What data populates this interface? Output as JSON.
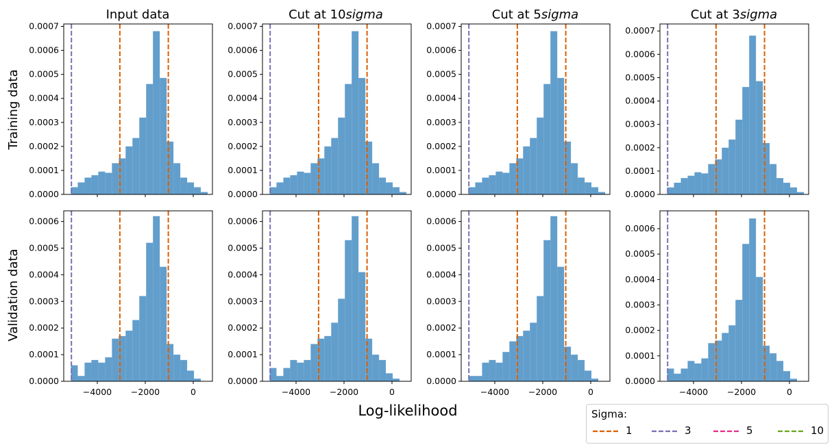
{
  "figure": {
    "xlabel": "Log-likelihood",
    "column_titles": [
      "Input data",
      "Cut at 10",
      "Cut at 5",
      "Cut at 3"
    ],
    "column_title_suffix": "sigma",
    "row_labels": [
      "Training data",
      "Validation data"
    ]
  },
  "legend": {
    "title": "Sigma:",
    "entries": [
      {
        "label": "1",
        "color": "#d95f02"
      },
      {
        "label": "3",
        "color": "#7570b3"
      },
      {
        "label": "5",
        "color": "#e7298a"
      },
      {
        "label": "10",
        "color": "#66a61e"
      }
    ]
  },
  "colors": {
    "bars": "#4c91c5",
    "sigma1": "#d95f02",
    "sigma3": "#7570b3"
  },
  "chart_data": [
    {
      "type": "bar",
      "row": "Training data",
      "column": "Input data",
      "xlim": [
        -5400,
        800
      ],
      "ylim": [
        0,
        0.00071
      ],
      "xticks": [
        -4000,
        -2000,
        0
      ],
      "yticks": [
        0,
        0.0001,
        0.0002,
        0.0003,
        0.0004,
        0.0005,
        0.0006,
        0.0007
      ],
      "bins": {
        "start": -5100,
        "width": 285,
        "heights": [
          3e-05,
          5e-05,
          7e-05,
          8e-05,
          9.5e-05,
          9e-05,
          0.00013,
          0.00015,
          0.0002,
          0.000235,
          0.00032,
          0.00046,
          0.00068,
          0.000485,
          0.00022,
          0.00013,
          7e-05,
          5e-05,
          3e-05,
          1e-05
        ]
      },
      "vlines": [
        {
          "x": -3060,
          "sigma": "1"
        },
        {
          "x": -1040,
          "sigma": "1"
        },
        {
          "x": -5080,
          "sigma": "3"
        }
      ]
    },
    {
      "type": "bar",
      "row": "Training data",
      "column": "Cut at 10sigma",
      "xlim": [
        -5400,
        800
      ],
      "ylim": [
        0,
        0.00071
      ],
      "xticks": [
        -4000,
        -2000,
        0
      ],
      "yticks": [
        0,
        0.0001,
        0.0002,
        0.0003,
        0.0004,
        0.0005,
        0.0006,
        0.0007
      ],
      "bins": {
        "start": -5100,
        "width": 285,
        "heights": [
          3e-05,
          5e-05,
          7e-05,
          8e-05,
          9.5e-05,
          9e-05,
          0.00013,
          0.00015,
          0.0002,
          0.000235,
          0.00032,
          0.00046,
          0.00068,
          0.000485,
          0.00022,
          0.00013,
          7e-05,
          5e-05,
          3e-05,
          1e-05
        ]
      },
      "vlines": [
        {
          "x": -3060,
          "sigma": "1"
        },
        {
          "x": -1040,
          "sigma": "1"
        },
        {
          "x": -5080,
          "sigma": "3"
        }
      ]
    },
    {
      "type": "bar",
      "row": "Training data",
      "column": "Cut at 5sigma",
      "xlim": [
        -5400,
        800
      ],
      "ylim": [
        0,
        0.00071
      ],
      "xticks": [
        -4000,
        -2000,
        0
      ],
      "yticks": [
        0,
        0.0001,
        0.0002,
        0.0003,
        0.0004,
        0.0005,
        0.0006,
        0.0007
      ],
      "bins": {
        "start": -5100,
        "width": 285,
        "heights": [
          3e-05,
          5e-05,
          7e-05,
          8e-05,
          9.5e-05,
          9e-05,
          0.00013,
          0.00015,
          0.0002,
          0.000235,
          0.00032,
          0.00046,
          0.00068,
          0.000485,
          0.00022,
          0.00013,
          7e-05,
          5e-05,
          3e-05,
          1e-05
        ]
      },
      "vlines": [
        {
          "x": -3060,
          "sigma": "1"
        },
        {
          "x": -1040,
          "sigma": "1"
        },
        {
          "x": -5080,
          "sigma": "3"
        }
      ]
    },
    {
      "type": "bar",
      "row": "Training data",
      "column": "Cut at 3sigma",
      "xlim": [
        -5400,
        800
      ],
      "ylim": [
        0,
        0.00073
      ],
      "xticks": [
        -4000,
        -2000,
        0
      ],
      "yticks": [
        0,
        0.0001,
        0.0002,
        0.0003,
        0.0004,
        0.0005,
        0.0006,
        0.0007
      ],
      "bins": {
        "start": -5100,
        "width": 285,
        "heights": [
          3e-05,
          5e-05,
          7e-05,
          8e-05,
          9.5e-05,
          9e-05,
          0.00013,
          0.00015,
          0.0002,
          0.000235,
          0.00032,
          0.00046,
          0.00068,
          0.000485,
          0.00022,
          0.00013,
          7e-05,
          5e-05,
          3e-05,
          1e-05
        ]
      },
      "vlines": [
        {
          "x": -3060,
          "sigma": "1"
        },
        {
          "x": -1040,
          "sigma": "1"
        },
        {
          "x": -5080,
          "sigma": "3"
        }
      ]
    },
    {
      "type": "bar",
      "row": "Validation data",
      "column": "Input data",
      "xlim": [
        -5400,
        800
      ],
      "ylim": [
        0,
        0.00064
      ],
      "xticks": [
        -4000,
        -2000,
        0
      ],
      "yticks": [
        0,
        0.0001,
        0.0002,
        0.0003,
        0.0004,
        0.0005,
        0.0006
      ],
      "bins": {
        "start": -5100,
        "width": 285,
        "heights": [
          6e-05,
          2e-05,
          7e-05,
          8e-05,
          7e-05,
          9e-05,
          0.00016,
          0.00017,
          0.00019,
          0.00023,
          0.00032,
          0.00052,
          0.00062,
          0.00043,
          0.00014,
          0.0001,
          8e-05,
          4e-05,
          1e-05
        ]
      },
      "vlines": [
        {
          "x": -3060,
          "sigma": "1"
        },
        {
          "x": -1040,
          "sigma": "1"
        },
        {
          "x": -5080,
          "sigma": "3"
        }
      ]
    },
    {
      "type": "bar",
      "row": "Validation data",
      "column": "Cut at 10sigma",
      "xlim": [
        -5400,
        800
      ],
      "ylim": [
        0,
        0.00064
      ],
      "xticks": [
        -4000,
        -2000,
        0
      ],
      "yticks": [
        0,
        0.0001,
        0.0002,
        0.0003,
        0.0004,
        0.0005,
        0.0006
      ],
      "bins": {
        "start": -5100,
        "width": 285,
        "heights": [
          5e-05,
          2e-05,
          5e-05,
          8e-05,
          7e-05,
          8e-05,
          0.00014,
          0.00016,
          0.00017,
          0.00022,
          0.00031,
          0.00053,
          0.00062,
          0.00041,
          0.00016,
          0.0001,
          8e-05,
          3e-05,
          1e-05
        ]
      },
      "vlines": [
        {
          "x": -3060,
          "sigma": "1"
        },
        {
          "x": -1040,
          "sigma": "1"
        },
        {
          "x": -5080,
          "sigma": "3"
        }
      ]
    },
    {
      "type": "bar",
      "row": "Validation data",
      "column": "Cut at 5sigma",
      "xlim": [
        -5400,
        800
      ],
      "ylim": [
        0,
        0.00064
      ],
      "xticks": [
        -4000,
        -2000,
        0
      ],
      "yticks": [
        0,
        0.0001,
        0.0002,
        0.0003,
        0.0004,
        0.0005,
        0.0006
      ],
      "bins": {
        "start": -5100,
        "width": 285,
        "heights": [
          2e-05,
          2e-05,
          7e-05,
          8e-05,
          7e-05,
          0.00011,
          0.00015,
          0.00017,
          0.00019,
          0.00022,
          0.00032,
          0.00053,
          0.00062,
          0.00043,
          0.00013,
          0.0001,
          8e-05,
          4e-05,
          1e-05
        ]
      },
      "vlines": [
        {
          "x": -3060,
          "sigma": "1"
        },
        {
          "x": -1040,
          "sigma": "1"
        },
        {
          "x": -5080,
          "sigma": "3"
        }
      ]
    },
    {
      "type": "bar",
      "row": "Validation data",
      "column": "Cut at 3sigma",
      "xlim": [
        -5400,
        800
      ],
      "ylim": [
        0,
        0.00067
      ],
      "xticks": [
        -4000,
        -2000,
        0
      ],
      "yticks": [
        0,
        0.0001,
        0.0002,
        0.0003,
        0.0004,
        0.0005,
        0.0006
      ],
      "bins": {
        "start": -5100,
        "width": 285,
        "heights": [
          5e-05,
          3e-05,
          5e-05,
          8e-05,
          7e-05,
          9e-05,
          0.00015,
          0.00016,
          0.00019,
          0.00022,
          0.00032,
          0.00054,
          0.00064,
          0.00041,
          0.00014,
          0.00011,
          8e-05,
          4e-05,
          1e-05
        ]
      },
      "vlines": [
        {
          "x": -3060,
          "sigma": "1"
        },
        {
          "x": -1040,
          "sigma": "1"
        },
        {
          "x": -5080,
          "sigma": "3"
        }
      ]
    }
  ]
}
